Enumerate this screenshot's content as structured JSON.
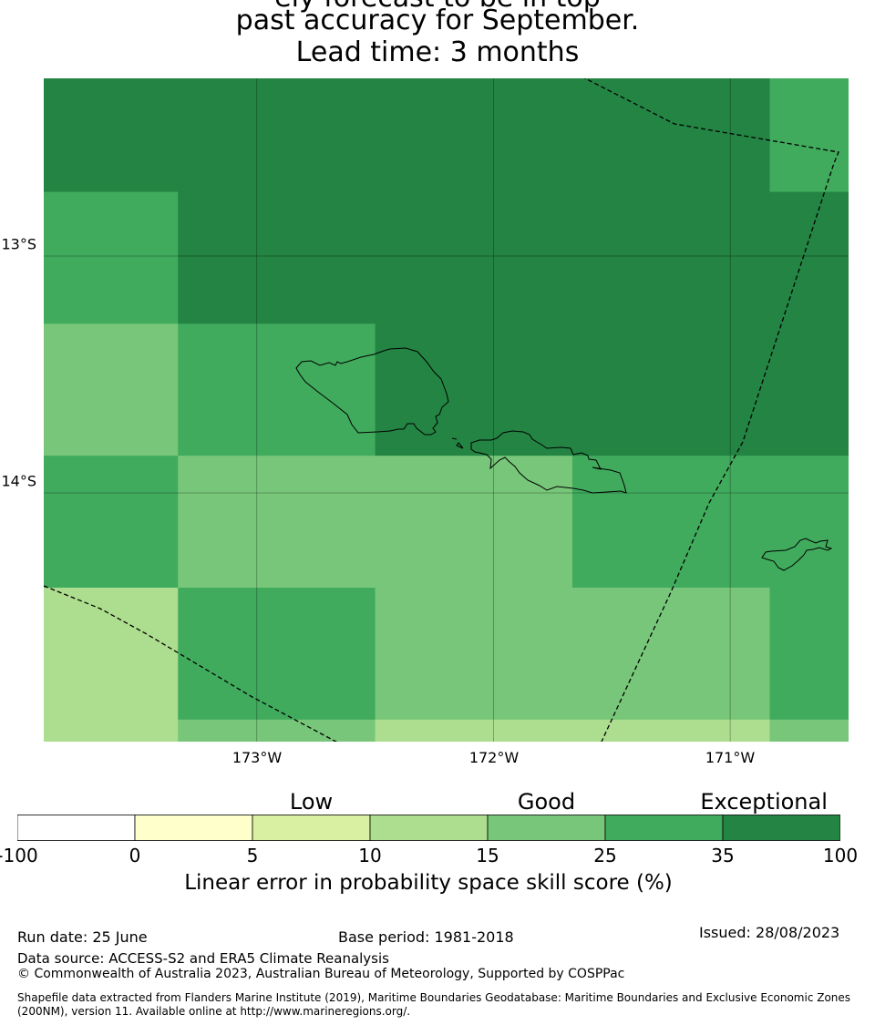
{
  "title": {
    "line1": "ely forecast to be in top",
    "line2": "past accuracy for September.",
    "line3": "Lead time: 3 months"
  },
  "map": {
    "latitude_labels": [
      {
        "label": "13°S",
        "lat": -13
      },
      {
        "label": "14°S",
        "lat": -14
      }
    ],
    "longitude_labels": [
      {
        "label": "173°W",
        "lon": -173
      },
      {
        "label": "172°W",
        "lon": -172
      },
      {
        "label": "171°W",
        "lon": -171
      }
    ],
    "extent": {
      "lon_min": -173.9,
      "lon_max": -170.5,
      "lat_min": -15.05,
      "lat_max": -12.25
    },
    "grid_columns": [
      -173.9,
      -173.333,
      -172.5,
      -171.667,
      -170.833,
      -170.5
    ],
    "grid_rows": [
      -12.25,
      -12.729,
      -13.286,
      -13.843,
      -14.4,
      -14.957,
      -15.05
    ],
    "skill_cells": [
      [
        35,
        35,
        35,
        35,
        25
      ],
      [
        25,
        35,
        35,
        35,
        35
      ],
      [
        15,
        25,
        35,
        35,
        35
      ],
      [
        25,
        15,
        15,
        25,
        25
      ],
      [
        10,
        25,
        15,
        15,
        25
      ],
      [
        10,
        15,
        10,
        10,
        15
      ]
    ],
    "land_color": "none",
    "eez_style": "dashed"
  },
  "legend": {
    "categories": [
      {
        "label": "Low",
        "at": 2.5
      },
      {
        "label": "Good",
        "at": 4.5
      },
      {
        "label": "Exceptional",
        "at": 6.35
      }
    ],
    "ticks": [
      "-100",
      "0",
      "5",
      "10",
      "15",
      "25",
      "35",
      "100"
    ],
    "colors": [
      "#ffffff",
      "#ffffcc",
      "#d9f0a3",
      "#addd8e",
      "#78c679",
      "#41ab5d",
      "#238443"
    ],
    "label": "Linear error in probability space skill score (%)"
  },
  "footer": {
    "run_date": "Run date: 25 June",
    "base_period": "Base period: 1981-2018",
    "issued": "Issued: 28/08/2023",
    "data_source": "Data source: ACCESS-S2 and ERA5 Climate Reanalysis",
    "copyright": "© Commonwealth of Australia 2023, Australian Bureau of Meteorology, Supported by COSPPac",
    "shapefile": "Shapefile data extracted from Flanders Marine Institute (2019), Maritime Boundaries Geodatabase: Maritime Boundaries and Exclusive Economic Zones (200NM), version 11. Available online at http://www.marineregions.org/."
  }
}
